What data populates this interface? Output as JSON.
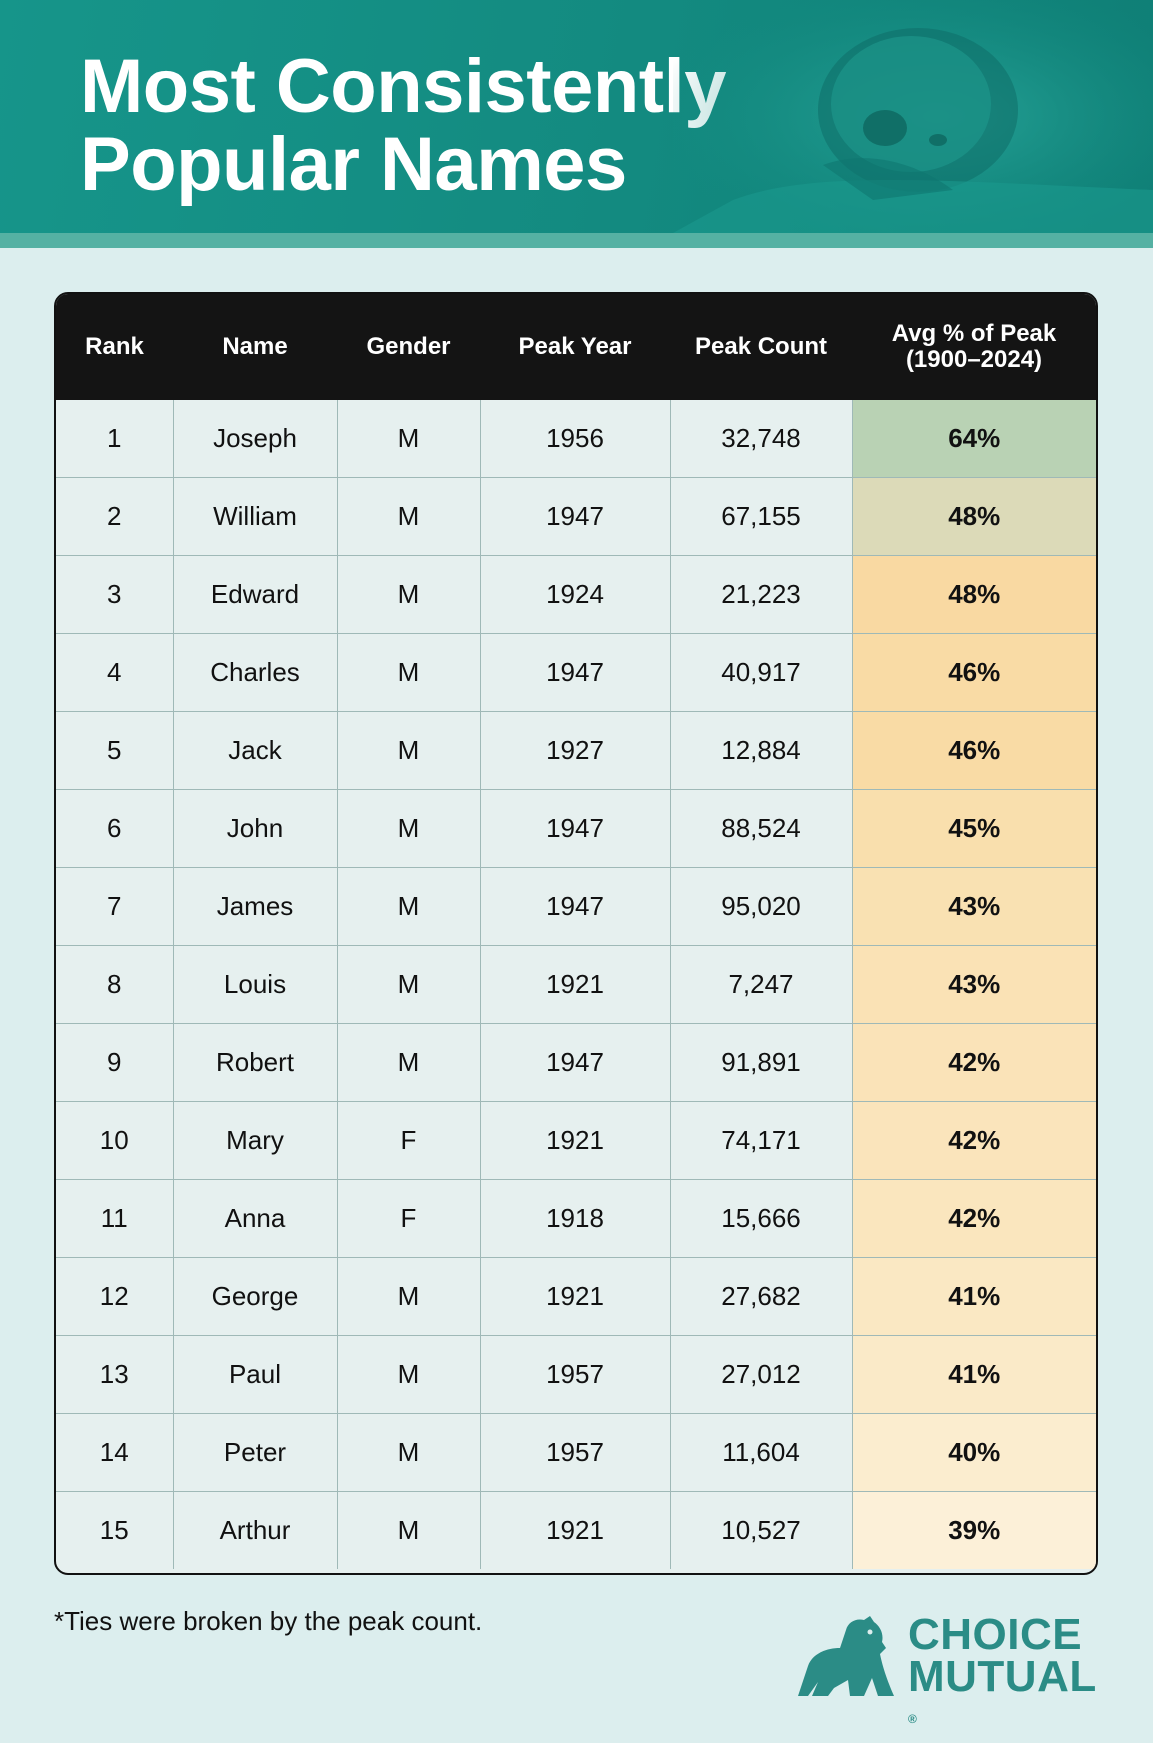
{
  "header": {
    "title_line1": "Most Consistently",
    "title_line2": "Popular Names"
  },
  "table": {
    "columns": [
      "Rank",
      "Name",
      "Gender",
      "Peak Year",
      "Peak Count",
      "Avg % of Peak\n(1900–2024)"
    ],
    "rows": [
      {
        "rank": "1",
        "name": "Joseph",
        "gender": "M",
        "peak_year": "1956",
        "peak_count": "32,748",
        "avg_pct": "64%",
        "color": "#b9d2b4"
      },
      {
        "rank": "2",
        "name": "William",
        "gender": "M",
        "peak_year": "1947",
        "peak_count": "67,155",
        "avg_pct": "48%",
        "color": "#dcdab8"
      },
      {
        "rank": "3",
        "name": "Edward",
        "gender": "M",
        "peak_year": "1924",
        "peak_count": "21,223",
        "avg_pct": "48%",
        "color": "#f9d9a2"
      },
      {
        "rank": "4",
        "name": "Charles",
        "gender": "M",
        "peak_year": "1947",
        "peak_count": "40,917",
        "avg_pct": "46%",
        "color": "#f9dba5"
      },
      {
        "rank": "5",
        "name": "Jack",
        "gender": "M",
        "peak_year": "1927",
        "peak_count": "12,884",
        "avg_pct": "46%",
        "color": "#f9dba5"
      },
      {
        "rank": "6",
        "name": "John",
        "gender": "M",
        "peak_year": "1947",
        "peak_count": "88,524",
        "avg_pct": "45%",
        "color": "#f9dfad"
      },
      {
        "rank": "7",
        "name": "James",
        "gender": "M",
        "peak_year": "1947",
        "peak_count": "95,020",
        "avg_pct": "43%",
        "color": "#f9e1b2"
      },
      {
        "rank": "8",
        "name": "Louis",
        "gender": "M",
        "peak_year": "1921",
        "peak_count": "7,247",
        "avg_pct": "43%",
        "color": "#fae2b5"
      },
      {
        "rank": "9",
        "name": "Robert",
        "gender": "M",
        "peak_year": "1947",
        "peak_count": "91,891",
        "avg_pct": "42%",
        "color": "#fae3b8"
      },
      {
        "rank": "10",
        "name": "Mary",
        "gender": "F",
        "peak_year": "1921",
        "peak_count": "74,171",
        "avg_pct": "42%",
        "color": "#fae4bb"
      },
      {
        "rank": "11",
        "name": "Anna",
        "gender": "F",
        "peak_year": "1918",
        "peak_count": "15,666",
        "avg_pct": "42%",
        "color": "#fae6be"
      },
      {
        "rank": "12",
        "name": "George",
        "gender": "M",
        "peak_year": "1921",
        "peak_count": "27,682",
        "avg_pct": "41%",
        "color": "#fae8c3"
      },
      {
        "rank": "13",
        "name": "Paul",
        "gender": "M",
        "peak_year": "1957",
        "peak_count": "27,012",
        "avg_pct": "41%",
        "color": "#faeac8"
      },
      {
        "rank": "14",
        "name": "Peter",
        "gender": "M",
        "peak_year": "1957",
        "peak_count": "11,604",
        "avg_pct": "40%",
        "color": "#fbedcf"
      },
      {
        "rank": "15",
        "name": "Arthur",
        "gender": "M",
        "peak_year": "1921",
        "peak_count": "10,527",
        "avg_pct": "39%",
        "color": "#fcf0d8"
      }
    ]
  },
  "footnote": "*Ties were broken by the peak count.",
  "logo": {
    "line1": "CHOICE",
    "line2": "MUTUAL",
    "registered": "®",
    "icon": "bear-icon",
    "color": "#2b8c86"
  },
  "colors": {
    "header_bg": "#138a80",
    "header_strip": "#55b1a3",
    "page_bg": "#dceeee",
    "table_header_bg": "#141414"
  }
}
